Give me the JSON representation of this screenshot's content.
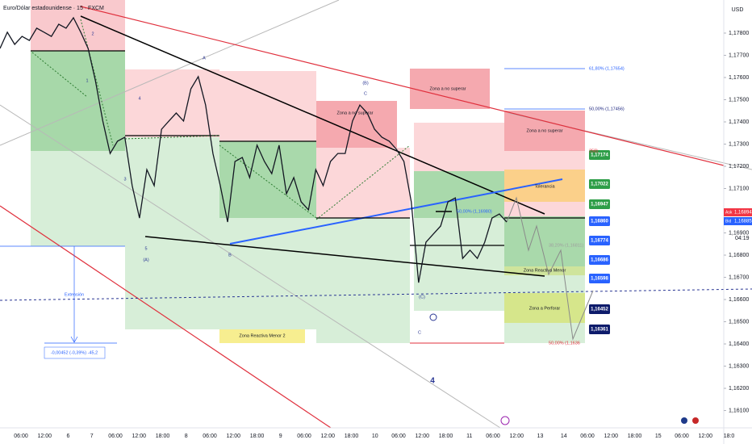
{
  "chart_data": {
    "type": "line",
    "title": "Euro/Dólar estadounidense · 15 · FXCM",
    "currency": "USD",
    "color": "#131722",
    "values": [
      1.17731,
      1.17804,
      1.17749,
      1.17785,
      1.17767,
      1.17822,
      1.17804,
      1.17785,
      1.1784,
      1.17822,
      1.17869,
      1.17804,
      1.17731,
      1.17585,
      1.17404,
      1.17258,
      1.17313,
      1.17331,
      1.17113,
      1.16967,
      1.17185,
      1.17113,
      1.17367,
      1.17404,
      1.1744,
      1.17404,
      1.17549,
      1.17604,
      1.17476,
      1.17258,
      1.17113,
      1.16949,
      1.17222,
      1.1724,
      1.17149,
      1.17295,
      1.17222,
      1.17167,
      1.17295,
      1.17076,
      1.17149,
      1.1704,
      1.17004,
      1.17185,
      1.17113,
      1.17222,
      1.17258,
      1.17258,
      1.17404,
      1.17476,
      1.1744,
      1.17367,
      1.17331,
      1.17313,
      1.17276,
      1.17222,
      1.1704,
      1.16676,
      1.16858,
      1.16895,
      1.16931,
      1.1704,
      1.17058,
      1.16785,
      1.16822,
      1.16785,
      1.16858,
      1.16967,
      1.16985,
      1.16949
    ],
    "ylim": [
      1.16022,
      1.17949
    ],
    "yticks": [
      {
        "value": 1.161,
        "label": "1,16100"
      },
      {
        "value": 1.162,
        "label": "1,16200"
      },
      {
        "value": 1.163,
        "label": "1,16300"
      },
      {
        "value": 1.164,
        "label": "1,16400"
      },
      {
        "value": 1.165,
        "label": "1,16500"
      },
      {
        "value": 1.166,
        "label": "1,16600"
      },
      {
        "value": 1.167,
        "label": "1,16700"
      },
      {
        "value": 1.168,
        "label": "1,16800"
      },
      {
        "value": 1.169,
        "label": "1,16900"
      },
      {
        "value": 1.17,
        "label": "1,17000"
      },
      {
        "value": 1.171,
        "label": "1,17100"
      },
      {
        "value": 1.172,
        "label": "1,17200"
      },
      {
        "value": 1.173,
        "label": "1,17300"
      },
      {
        "value": 1.174,
        "label": "1,17400"
      },
      {
        "value": 1.175,
        "label": "1,17500"
      },
      {
        "value": 1.176,
        "label": "1,17600"
      },
      {
        "value": 1.177,
        "label": "1,17700"
      },
      {
        "value": 1.178,
        "label": "1,17800"
      }
    ],
    "time_labels": [
      "06:00",
      "12:00",
      "6",
      "7",
      "06:00",
      "12:00",
      "18:00",
      "8",
      "06:00",
      "12:00",
      "18:00",
      "9",
      "06:00",
      "12:00",
      "18:00",
      "10",
      "06:00",
      "12:00",
      "18:00",
      "11",
      "06:00",
      "12:00",
      "13",
      "14",
      "06:00",
      "12:00",
      "18:00",
      "15",
      "06:00",
      "12:00",
      "18:0"
    ],
    "ask": {
      "tag": "Ask",
      "price": "1,16894"
    },
    "bid": {
      "tag": "Bid",
      "price": "1,16885"
    },
    "timer": "04:19",
    "price_tags": [
      "1,17174",
      "1,17022",
      "1,16947",
      "1,16860",
      "1,16774",
      "1,16686",
      "1,16598",
      "1,16452",
      "1,16361"
    ],
    "fib_labels": [
      "61,80% (1,17654)",
      "50,00% (1,17456)",
      "258)",
      "50,00% (1,16980)",
      "38,20% (1,16811)",
      "50,00% (1,1636"
    ],
    "zone_labels": [
      "Zona a no superar",
      "Zona a no superar",
      "Zona a no superar",
      "Tolerancia",
      "Zona Reactiva Menor",
      "Zona a Perforar",
      "Zona Reactiva Menor 2"
    ],
    "wave_labels": [
      "2",
      "1",
      "3",
      "4",
      "5",
      "(A)",
      "A",
      "B",
      "(B)",
      "C",
      "(C)",
      "C",
      "4"
    ],
    "extension": {
      "label": "Extensión",
      "measure": "-0,00452 (-0,39%) -45,2"
    }
  }
}
